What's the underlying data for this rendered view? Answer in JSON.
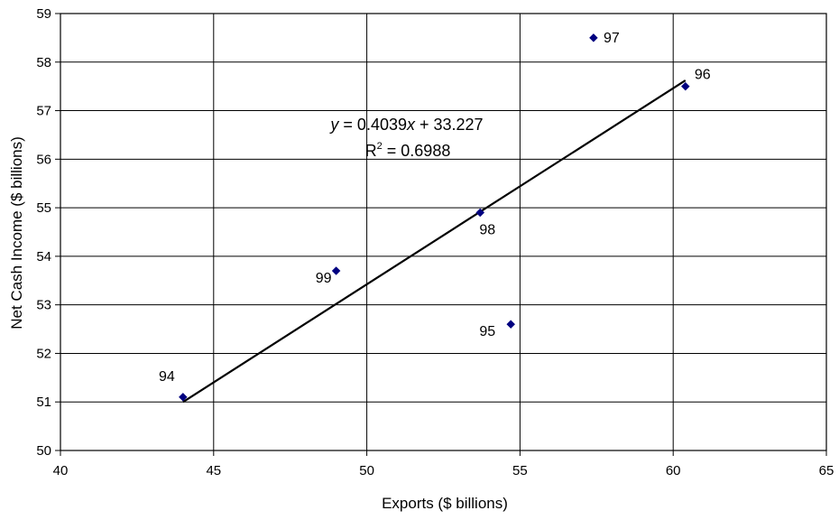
{
  "chart_data": {
    "type": "scatter",
    "xlabel": "Exports ($ billions)",
    "ylabel": "Net Cash Income ($ billions)",
    "xlim": [
      40,
      65
    ],
    "ylim": [
      50,
      59
    ],
    "xticks": [
      40,
      45,
      50,
      55,
      60,
      65
    ],
    "yticks": [
      50,
      51,
      52,
      53,
      54,
      55,
      56,
      57,
      58,
      59
    ],
    "grid": true,
    "marker_color": "#000080",
    "points": [
      {
        "label": "94",
        "x": 44.0,
        "y": 51.1
      },
      {
        "label": "95",
        "x": 54.7,
        "y": 52.6
      },
      {
        "label": "96",
        "x": 60.4,
        "y": 57.5
      },
      {
        "label": "97",
        "x": 57.4,
        "y": 58.5
      },
      {
        "label": "98",
        "x": 53.7,
        "y": 54.9
      },
      {
        "label": "99",
        "x": 49.0,
        "y": 53.7
      }
    ],
    "trendline": {
      "slope": 0.4039,
      "intercept": 33.227,
      "x_range": [
        44.0,
        60.4
      ],
      "equation_prefix": "y",
      "equation_mid": " = 0.4039",
      "equation_var": "x",
      "equation_suffix": " + 33.227",
      "r2_prefix": "R",
      "r2_sup": "2",
      "r2_suffix": " = 0.6988"
    }
  }
}
